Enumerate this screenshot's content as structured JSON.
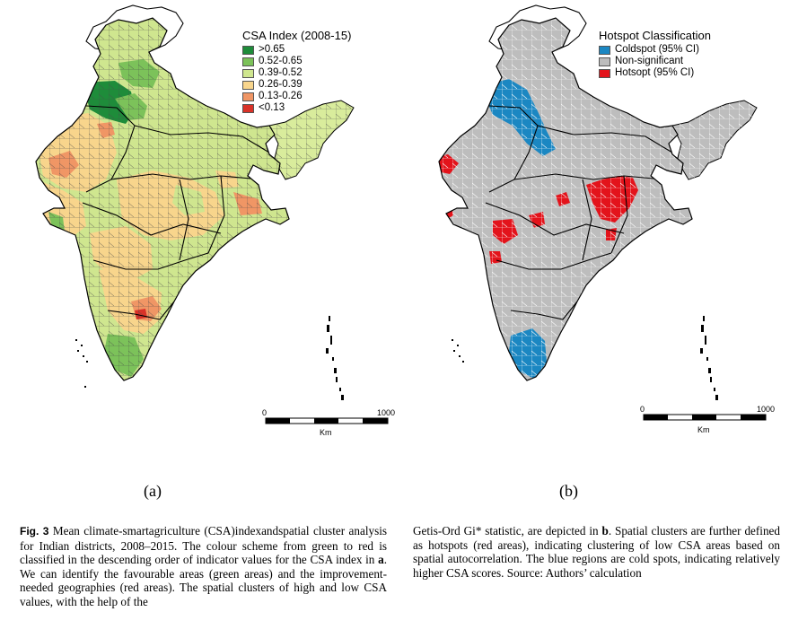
{
  "panel_a": {
    "legend_title": "CSA Index (2008-15)",
    "legend_items": [
      {
        "label": ">0.65",
        "color": "#1e8c3a"
      },
      {
        "label": "0.52-0.65",
        "color": "#7cc25a"
      },
      {
        "label": "0.39-0.52",
        "color": "#cfe68f"
      },
      {
        "label": "0.26-0.39",
        "color": "#f8d58c"
      },
      {
        "label": "0.13-0.26",
        "color": "#f09665"
      },
      {
        "label": "<0.13",
        "color": "#d93228"
      }
    ],
    "scale_start": "0",
    "scale_end": "1000",
    "scale_unit": "Km",
    "panel_label": "(a)"
  },
  "panel_b": {
    "legend_title": "Hotspot Classification",
    "legend_items": [
      {
        "label": "Coldspot (95% CI)",
        "color": "#1b87c2"
      },
      {
        "label": "Non-significant",
        "color": "#bdbdbd"
      },
      {
        "label": "Hotsopt (95% CI)",
        "color": "#e3131b"
      }
    ],
    "scale_start": "0",
    "scale_end": "1000",
    "scale_unit": "Km",
    "panel_label": "(b)"
  },
  "caption": {
    "fig_label": "Fig. 3",
    "left_text": "Mean climate-smartagriculture (CSA)indexandspatial cluster analysis for Indian districts, 2008–2015. The colour scheme from green to red is classified in the descending order of indicator values for the CSA index in ",
    "left_bold": "a",
    "left_text_2": ". We can identify the favourable areas (green areas) and the improvement-needed geographies (red areas). The spatial clusters of high and low CSA values, with the help of the",
    "right_text": "Getis-Ord Gi* statistic, are depicted in ",
    "right_bold": "b",
    "right_text_2": ". Spatial clusters are further defined as hotspots (red areas), indicating clustering of low CSA areas based on spatial autocorrelation. The blue regions are cold spots, indicating relatively higher CSA scores. Source: Authors’ calculation"
  },
  "colors": {
    "outline": "#000000",
    "district_line": "#3a3a3a",
    "nonsig_line": "#ffffff"
  }
}
